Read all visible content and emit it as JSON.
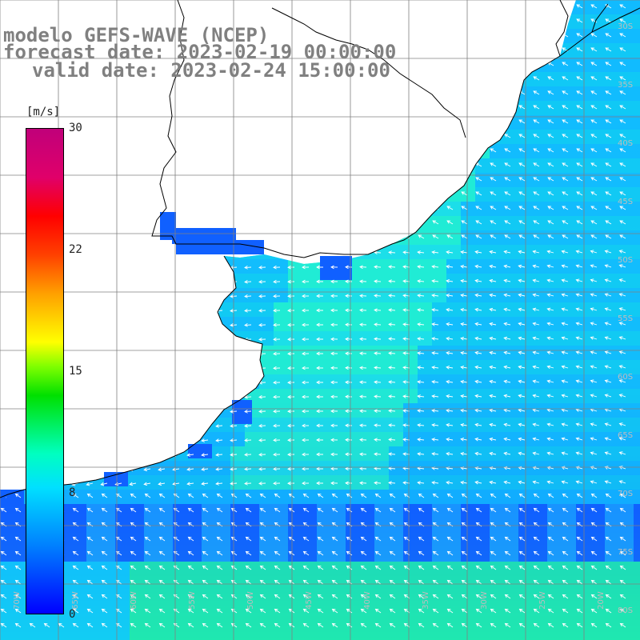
{
  "title": {
    "model": "modelo GEFS-WAVE (NCEP)",
    "forecast": "forecast date: 2023-02-19 00:00:00",
    "valid": "valid date: 2023-02-24 15:00:00"
  },
  "colorbar": {
    "units": "[m/s]",
    "ticks": [
      "30",
      "22",
      "15",
      "8",
      "0"
    ],
    "range": [
      0,
      30
    ]
  },
  "map_labels": {
    "lat": [
      "30S",
      "35S",
      "40S",
      "45S",
      "50S",
      "55S",
      "60S",
      "65S",
      "70S",
      "75S",
      "80S"
    ],
    "lon": [
      "70W",
      "65W",
      "60W",
      "55W",
      "50W",
      "45W",
      "40W",
      "35W",
      "30W",
      "25W",
      "20W"
    ]
  },
  "colors": {
    "low_wind": "#1060ff",
    "mid_wind": "#10c8ff",
    "high_wind": "#20e8b0",
    "land": "#ffffff",
    "grid": "#808080",
    "coast": "#000000",
    "arrow": "#ffffff"
  },
  "features": [
    "wind-speed-field",
    "wind-direction-arrows",
    "coastline",
    "lat-lon-grid"
  ]
}
